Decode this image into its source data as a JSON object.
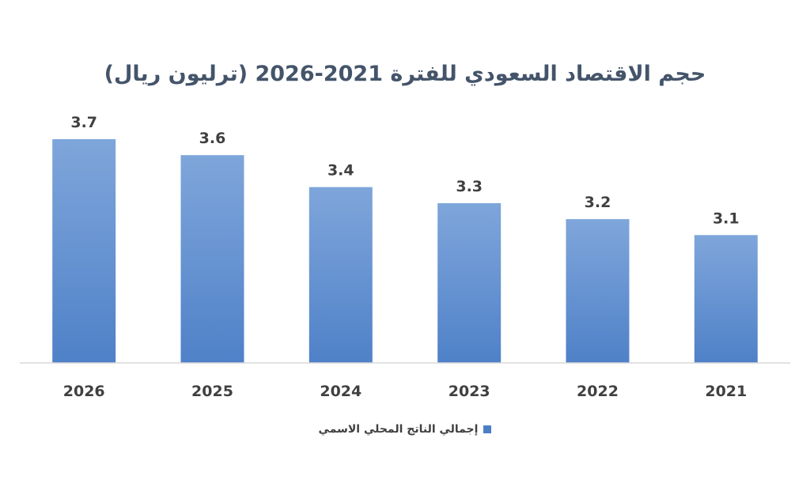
{
  "chart_data": {
    "type": "bar",
    "title": "حجم الاقتصاد السعودي للفترة 2021-2026  (ترليون ريال)",
    "categories": [
      "2026",
      "2025",
      "2024",
      "2023",
      "2022",
      "2021"
    ],
    "series": [
      {
        "name": "إجمالي الناتج المحلي الاسمي",
        "values": [
          3.7,
          3.6,
          3.4,
          3.3,
          3.2,
          3.1
        ],
        "color": "#5B8FD4"
      }
    ],
    "data_labels": [
      "3.7",
      "3.6",
      "3.4",
      "3.3",
      "3.2",
      "3.1"
    ],
    "ylim": [
      0,
      3.7
    ],
    "grid": false,
    "legend_position": "bottom"
  }
}
